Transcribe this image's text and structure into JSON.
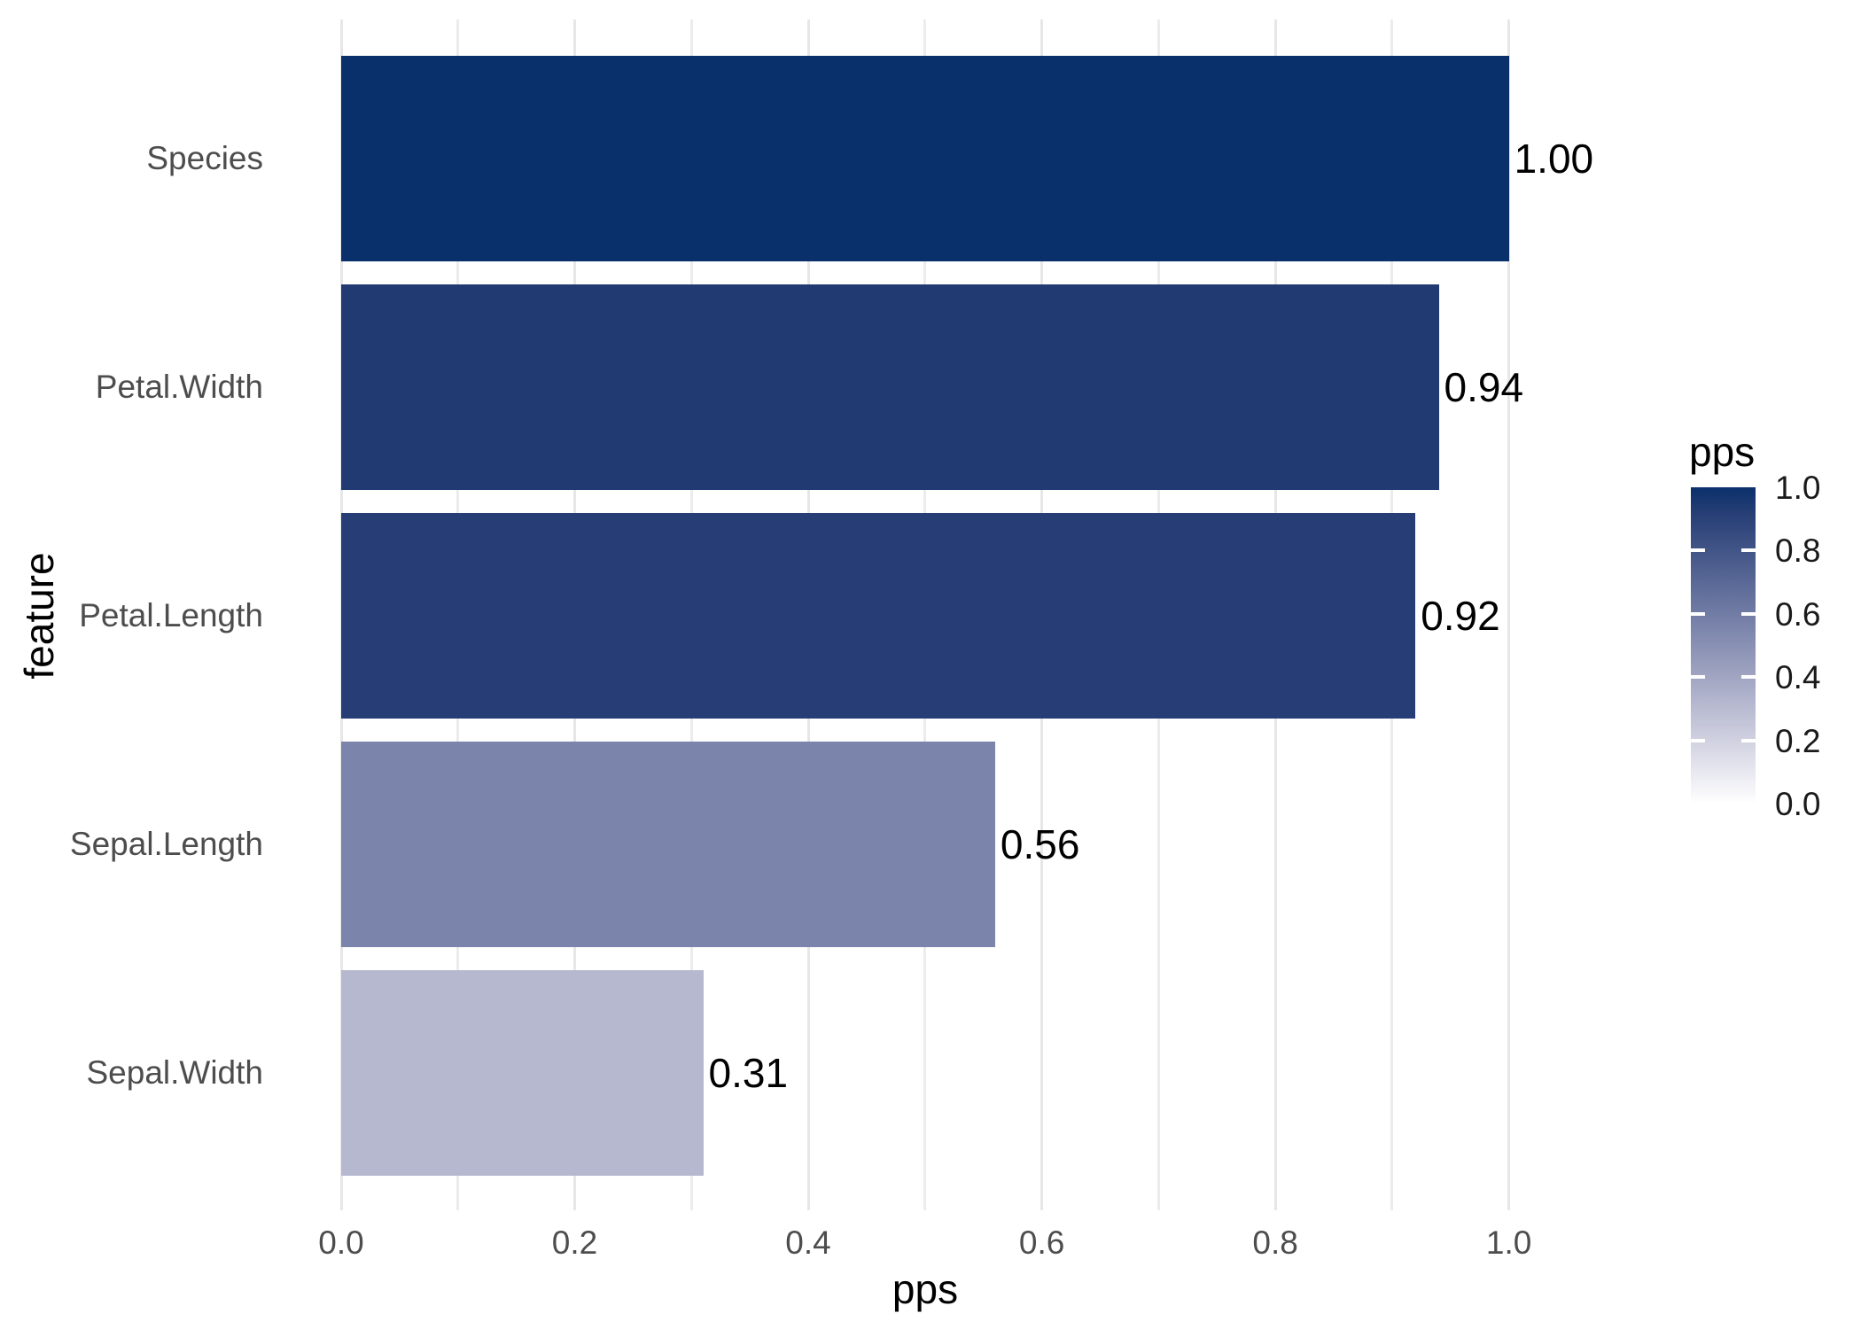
{
  "chart_data": {
    "type": "bar",
    "orientation": "horizontal",
    "categories": [
      "Species",
      "Petal.Width",
      "Petal.Length",
      "Sepal.Length",
      "Sepal.Width"
    ],
    "values": [
      1.0,
      0.94,
      0.92,
      0.56,
      0.31
    ],
    "value_labels": [
      "1.00",
      "0.94",
      "0.92",
      "0.56",
      "0.31"
    ],
    "bar_colors": [
      "#0a306b",
      "#213a72",
      "#263e75",
      "#7b84ab",
      "#b6b8cf"
    ],
    "xlabel": "pps",
    "ylabel": "feature",
    "xlim": [
      0,
      1
    ],
    "x_ticks": [
      {
        "label": "0.0",
        "value": 0.0
      },
      {
        "label": "0.2",
        "value": 0.2
      },
      {
        "label": "0.4",
        "value": 0.4
      },
      {
        "label": "0.6",
        "value": 0.6
      },
      {
        "label": "0.8",
        "value": 0.8
      },
      {
        "label": "1.0",
        "value": 1.0
      }
    ],
    "minor_grid_step": 0.1,
    "grid_color_major": "#e7e7e7",
    "grid_color_minor": "#ececec",
    "background": "#ffffff",
    "legend_position": "right"
  },
  "axes": {
    "x_title": "pps",
    "y_title": "feature"
  },
  "legend": {
    "title": "pps",
    "tick_labels": [
      {
        "label": "1.0",
        "value": 1.0
      },
      {
        "label": "0.8",
        "value": 0.8
      },
      {
        "label": "0.6",
        "value": 0.6
      },
      {
        "label": "0.4",
        "value": 0.4
      },
      {
        "label": "0.2",
        "value": 0.2
      },
      {
        "label": "0.0",
        "value": 0.0
      }
    ],
    "gradient_stops": [
      {
        "value": 1.0,
        "color": "#0a306b"
      },
      {
        "value": 0.92,
        "color": "#263e75"
      },
      {
        "value": 0.8,
        "color": "#425587"
      },
      {
        "value": 0.6,
        "color": "#717ca5"
      },
      {
        "value": 0.4,
        "color": "#a1a5c2"
      },
      {
        "value": 0.2,
        "color": "#d0d1e0"
      },
      {
        "value": 0.0,
        "color": "#ffffff"
      }
    ]
  }
}
